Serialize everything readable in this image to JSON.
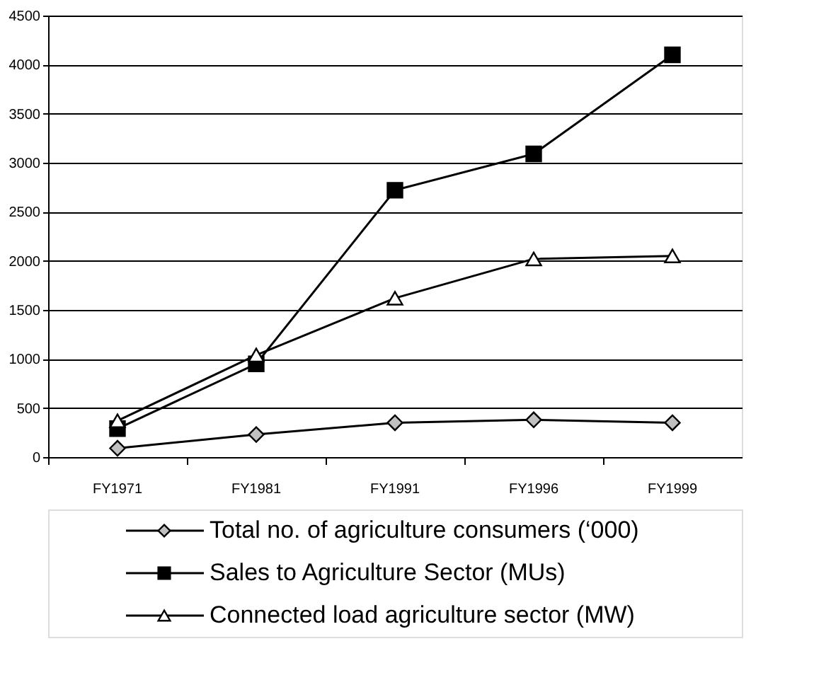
{
  "chart_data": {
    "type": "line",
    "categories": [
      "FY1971",
      "FY1981",
      "FY1991",
      "FY1996",
      "FY1999"
    ],
    "series": [
      {
        "name": "Total no. of  agriculture consumers (‘000)",
        "color": "#c0c0c0",
        "marker": "diamond",
        "values": [
          90,
          230,
          350,
          380,
          350
        ]
      },
      {
        "name": "Sales to Agriculture Sector (MUs)",
        "color": "#000000",
        "marker": "square",
        "values": [
          290,
          950,
          2720,
          3090,
          4100
        ]
      },
      {
        "name": "Connected load agriculture sector (MW)",
        "color": "#ffffff",
        "marker": "triangle",
        "values": [
          370,
          1040,
          1620,
          2020,
          2050
        ]
      }
    ],
    "ylim": [
      0,
      4500
    ],
    "yticks": [
      0,
      500,
      1000,
      1500,
      2000,
      2500,
      3000,
      3500,
      4000,
      4500
    ],
    "grid": "y",
    "legend": "bottom",
    "line_style": "solid"
  }
}
